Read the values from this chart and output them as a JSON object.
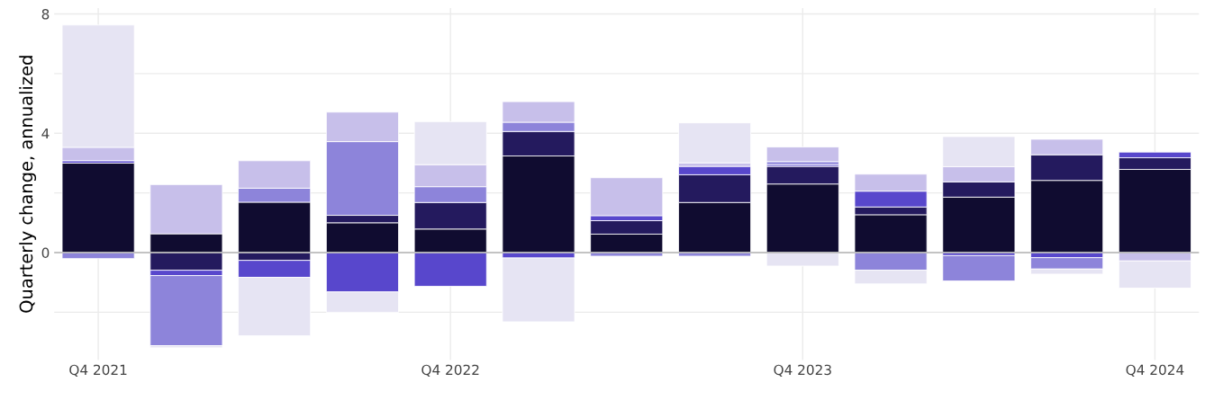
{
  "chart_data": {
    "type": "bar",
    "stacked": true,
    "ylabel": "Quarterly change, annualized",
    "categories": [
      "Q4 2021",
      null,
      null,
      null,
      "Q4 2022",
      null,
      null,
      null,
      "Q4 2023",
      null,
      null,
      null,
      "Q4 2024"
    ],
    "series": [
      {
        "color": "#100c30",
        "values": [
          3.0,
          0.63,
          1.69,
          1.0,
          0.79,
          3.24,
          0.62,
          1.68,
          2.3,
          1.27,
          1.86,
          2.42,
          2.79
        ]
      },
      {
        "color": "#241a5e",
        "values": [
          0,
          -0.59,
          -0.26,
          0.25,
          0.89,
          0.82,
          0.45,
          0.93,
          0.59,
          0.26,
          0.51,
          0.86,
          0.39
        ]
      },
      {
        "color": "#5847cc",
        "values": [
          0.08,
          -0.18,
          -0.57,
          -1.32,
          -1.13,
          -0.18,
          0.17,
          0.28,
          0.06,
          0.53,
          -0.1,
          -0.17,
          0.19
        ]
      },
      {
        "color": "#8d84da",
        "values": [
          -0.2,
          -2.35,
          0.47,
          2.47,
          0.53,
          0.31,
          -0.12,
          -0.12,
          0.1,
          -0.59,
          -0.85,
          -0.38,
          0
        ]
      },
      {
        "color": "#c7bfea",
        "values": [
          0.45,
          1.65,
          0.92,
          0.99,
          0.74,
          0.69,
          1.27,
          0.12,
          0.49,
          0.57,
          0.51,
          0.52,
          -0.28
        ]
      },
      {
        "color": "#e6e4f3",
        "values": [
          4.1,
          -0.07,
          -1.96,
          -0.68,
          1.44,
          -2.14,
          0,
          1.34,
          -0.45,
          -0.46,
          1.01,
          -0.17,
          -0.91
        ]
      }
    ],
    "ylim": [
      -3.6,
      8.2
    ],
    "yticks": [
      {
        "value": -2,
        "label": null
      },
      0,
      {
        "value": 2,
        "label": null
      },
      4,
      {
        "value": 6,
        "label": null
      },
      8
    ],
    "ref_lines": [
      {
        "axis": "y",
        "value": 0,
        "color": "#b4b4b4"
      }
    ],
    "grid": true
  }
}
